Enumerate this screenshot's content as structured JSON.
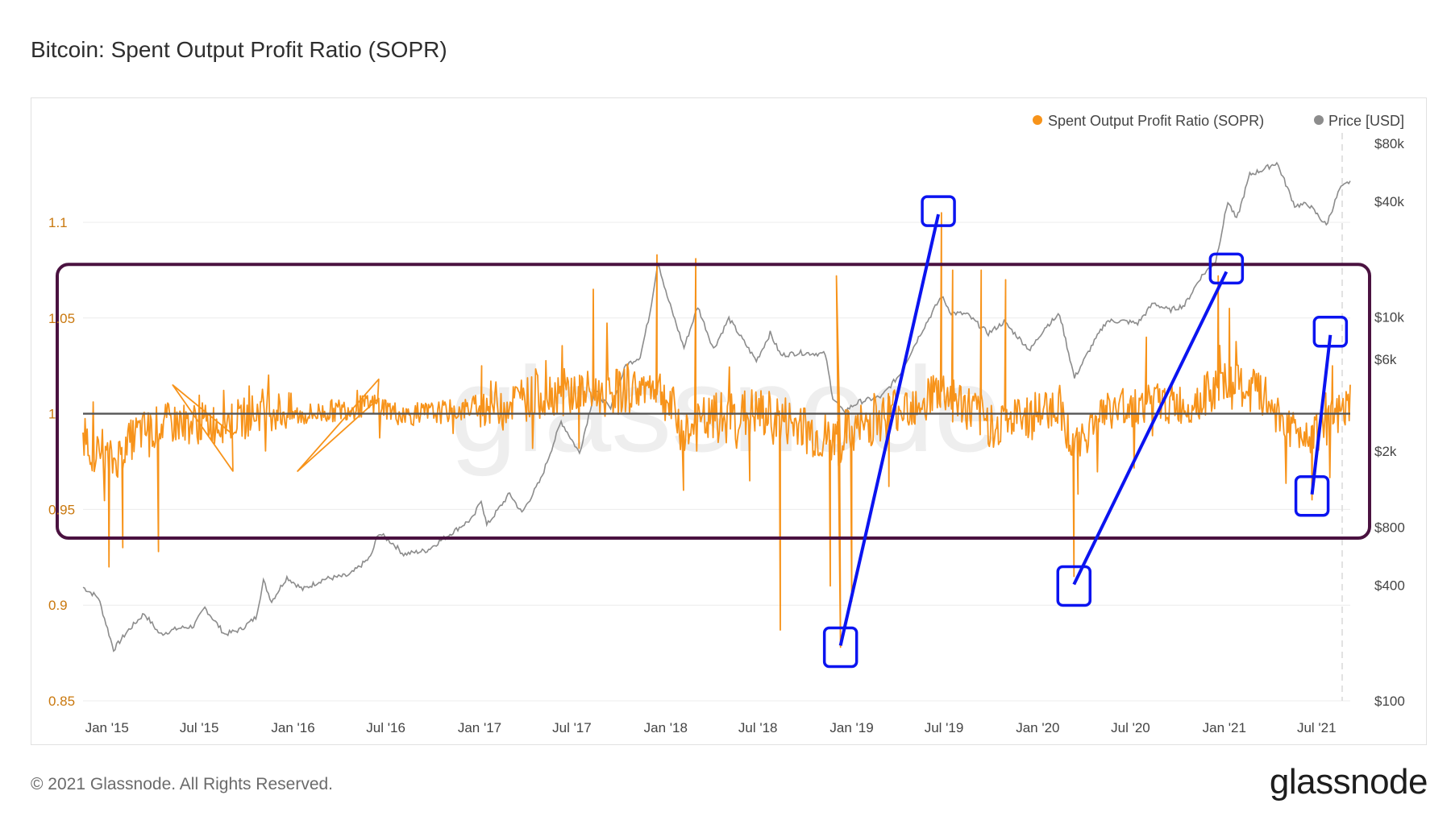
{
  "title": "Bitcoin: Spent Output Profit Ratio (SOPR)",
  "footer": {
    "copyright": "© 2021 Glassnode. All Rights Reserved.",
    "brand": "glassnode"
  },
  "watermark": "glassnode",
  "colors": {
    "sopr": "#f7931a",
    "price": "#8c8c8c",
    "baseline": "#555555",
    "annotation_box": "#4a1240",
    "annotation_blue": "#0b14f0",
    "left_axis_text": "#c9780e"
  },
  "chart_data": {
    "type": "line",
    "legend": [
      "Spent Output Profit Ratio (SOPR)",
      "Price [USD]"
    ],
    "legend_position": "top-right",
    "x_ticks": [
      "Jan '15",
      "Jul '15",
      "Jan '16",
      "Jul '16",
      "Jan '17",
      "Jul '17",
      "Jan '18",
      "Jul '18",
      "Jan '19",
      "Jul '19",
      "Jan '20",
      "Jul '20",
      "Jan '21",
      "Jul '21"
    ],
    "x_range": [
      "2014-11-15",
      "2021-09-05"
    ],
    "y_left": {
      "label": "",
      "ticks": [
        "0.85",
        "0.9",
        "0.95",
        "1",
        "1.05",
        "1.1"
      ],
      "range": [
        0.85,
        1.1
      ]
    },
    "y_right": {
      "label": "",
      "scale": "log",
      "ticks": [
        "$100",
        "$400",
        "$800",
        "$2k",
        "$6k",
        "$10k",
        "$40k",
        "$80k"
      ],
      "range": [
        100,
        80000
      ]
    },
    "grid": "horizontal",
    "series": [
      {
        "name": "Price [USD]",
        "axis": "right",
        "points": [
          [
            "2014-11-15",
            390
          ],
          [
            "2014-12-15",
            345
          ],
          [
            "2015-01-14",
            185
          ],
          [
            "2015-02-10",
            230
          ],
          [
            "2015-03-15",
            285
          ],
          [
            "2015-04-15",
            222
          ],
          [
            "2015-05-20",
            238
          ],
          [
            "2015-06-20",
            245
          ],
          [
            "2015-07-12",
            305
          ],
          [
            "2015-08-20",
            222
          ],
          [
            "2015-09-20",
            235
          ],
          [
            "2015-10-20",
            272
          ],
          [
            "2015-11-04",
            420
          ],
          [
            "2015-11-20",
            330
          ],
          [
            "2015-12-20",
            440
          ],
          [
            "2016-01-20",
            380
          ],
          [
            "2016-03-01",
            430
          ],
          [
            "2016-04-20",
            450
          ],
          [
            "2016-06-01",
            560
          ],
          [
            "2016-06-17",
            750
          ],
          [
            "2016-07-15",
            660
          ],
          [
            "2016-08-05",
            580
          ],
          [
            "2016-09-20",
            608
          ],
          [
            "2016-11-01",
            730
          ],
          [
            "2016-12-20",
            900
          ],
          [
            "2017-01-04",
            1120
          ],
          [
            "2017-01-15",
            820
          ],
          [
            "2017-03-01",
            1200
          ],
          [
            "2017-03-25",
            950
          ],
          [
            "2017-05-01",
            1420
          ],
          [
            "2017-06-10",
            2850
          ],
          [
            "2017-07-16",
            1950
          ],
          [
            "2017-08-15",
            4150
          ],
          [
            "2017-09-15",
            3300
          ],
          [
            "2017-10-15",
            5600
          ],
          [
            "2017-11-12",
            6200
          ],
          [
            "2017-12-01",
            10500
          ],
          [
            "2017-12-17",
            19500
          ],
          [
            "2018-01-01",
            13500
          ],
          [
            "2018-02-06",
            6900
          ],
          [
            "2018-03-05",
            11300
          ],
          [
            "2018-04-05",
            6800
          ],
          [
            "2018-05-05",
            9800
          ],
          [
            "2018-06-28",
            5900
          ],
          [
            "2018-07-25",
            8200
          ],
          [
            "2018-08-15",
            6300
          ],
          [
            "2018-09-20",
            6500
          ],
          [
            "2018-11-10",
            6400
          ],
          [
            "2018-11-25",
            3800
          ],
          [
            "2018-12-15",
            3200
          ],
          [
            "2019-01-15",
            3600
          ],
          [
            "2019-03-01",
            3850
          ],
          [
            "2019-04-05",
            5000
          ],
          [
            "2019-05-15",
            8100
          ],
          [
            "2019-06-26",
            12800
          ],
          [
            "2019-07-15",
            10500
          ],
          [
            "2019-08-15",
            10300
          ],
          [
            "2019-09-26",
            8200
          ],
          [
            "2019-10-27",
            9400
          ],
          [
            "2019-12-17",
            6700
          ],
          [
            "2020-01-15",
            8800
          ],
          [
            "2020-02-13",
            10300
          ],
          [
            "2020-03-13",
            4800
          ],
          [
            "2020-04-15",
            7000
          ],
          [
            "2020-05-15",
            9500
          ],
          [
            "2020-06-15",
            9500
          ],
          [
            "2020-07-15",
            9250
          ],
          [
            "2020-08-15",
            11800
          ],
          [
            "2020-09-15",
            10800
          ],
          [
            "2020-10-15",
            11500
          ],
          [
            "2020-11-15",
            16000
          ],
          [
            "2020-12-15",
            19500
          ],
          [
            "2021-01-08",
            40000
          ],
          [
            "2021-01-25",
            32000
          ],
          [
            "2021-02-20",
            55000
          ],
          [
            "2021-03-15",
            58000
          ],
          [
            "2021-04-14",
            63500
          ],
          [
            "2021-05-19",
            38000
          ],
          [
            "2021-06-15",
            38500
          ],
          [
            "2021-07-20",
            30000
          ],
          [
            "2021-08-15",
            46000
          ],
          [
            "2021-09-05",
            51000
          ]
        ]
      },
      {
        "name": "Spent Output Profit Ratio (SOPR)",
        "axis": "left",
        "baseline": 1,
        "anchors": [
          [
            "2014-11-15",
            0.99
          ],
          [
            "2014-12-05",
            0.98
          ],
          [
            "2015-01-14",
            0.975
          ],
          [
            "2015-03-01",
            0.99
          ],
          [
            "2015-05-01",
            0.995
          ],
          [
            "2015-08-01",
            0.995
          ],
          [
            "2015-10-01",
            0.998
          ],
          [
            "2015-11-04",
            1.003
          ],
          [
            "2016-01-15",
            0.999
          ],
          [
            "2016-06-15",
            1.005
          ],
          [
            "2016-08-01",
            0.999
          ],
          [
            "2016-12-01",
            1.002
          ],
          [
            "2017-01-04",
            1.005
          ],
          [
            "2017-03-01",
            1.006
          ],
          [
            "2017-06-10",
            1.012
          ],
          [
            "2017-09-01",
            1.01
          ],
          [
            "2017-12-17",
            1.015
          ],
          [
            "2018-02-06",
            0.99
          ],
          [
            "2018-04-01",
            0.997
          ],
          [
            "2018-07-01",
            1.0
          ],
          [
            "2018-09-01",
            0.995
          ],
          [
            "2018-11-25",
            0.985
          ],
          [
            "2019-01-01",
            0.99
          ],
          [
            "2019-04-01",
            1.003
          ],
          [
            "2019-06-26",
            1.012
          ],
          [
            "2019-09-26",
            0.995
          ],
          [
            "2019-12-01",
            0.997
          ],
          [
            "2020-02-13",
            1.005
          ],
          [
            "2020-03-13",
            0.98
          ],
          [
            "2020-05-01",
            1.0
          ],
          [
            "2020-08-15",
            1.006
          ],
          [
            "2020-10-15",
            1.004
          ],
          [
            "2021-01-08",
            1.015
          ],
          [
            "2021-03-15",
            1.01
          ],
          [
            "2021-05-19",
            0.99
          ],
          [
            "2021-07-20",
            0.993
          ],
          [
            "2021-09-05",
            1.003
          ]
        ],
        "spikes": [
          [
            "2015-01-05",
            0.92
          ],
          [
            "2015-02-01",
            0.93
          ],
          [
            "2015-04-12",
            0.928
          ],
          [
            "2015-09-05",
            0.97
          ],
          [
            "2015-05-10",
            1.015
          ],
          [
            "2016-06-17",
            1.018
          ],
          [
            "2016-01-10",
            0.97
          ],
          [
            "2017-01-05",
            1.025
          ],
          [
            "2017-07-15",
            0.982
          ],
          [
            "2017-08-12",
            1.065
          ],
          [
            "2017-12-15",
            1.083
          ],
          [
            "2018-02-05",
            0.96
          ],
          [
            "2018-03-01",
            1.081
          ],
          [
            "2018-06-15",
            0.965
          ],
          [
            "2018-08-14",
            0.887
          ],
          [
            "2018-11-20",
            0.91
          ],
          [
            "2018-12-10",
            0.878
          ],
          [
            "2018-12-02",
            1.072
          ],
          [
            "2019-01-01",
            0.902
          ],
          [
            "2019-03-15",
            0.962
          ],
          [
            "2019-06-26",
            1.105
          ],
          [
            "2019-07-18",
            1.075
          ],
          [
            "2019-09-12",
            1.075
          ],
          [
            "2019-10-30",
            1.07
          ],
          [
            "2020-03-12",
            0.915
          ],
          [
            "2020-03-20",
            0.958
          ],
          [
            "2020-08-01",
            1.04
          ],
          [
            "2020-12-20",
            1.072
          ],
          [
            "2021-01-11",
            1.055
          ],
          [
            "2021-06-22",
            0.955
          ],
          [
            "2021-08-01",
            1.025
          ]
        ]
      }
    ],
    "annotations": {
      "horizontal_box": {
        "from": "2014-11-15",
        "to": "2021-09-05",
        "y_top": 1.078,
        "y_bottom": 0.935
      },
      "links": [
        {
          "low": [
            "2018-12-10",
            0.878
          ],
          "high": [
            "2019-06-20",
            1.105
          ]
        },
        {
          "low": [
            "2020-03-12",
            0.91
          ],
          "high": [
            "2021-01-05",
            1.075
          ]
        },
        {
          "low": [
            "2021-06-22",
            0.957
          ],
          "high": [
            "2021-07-28",
            1.042
          ]
        }
      ]
    }
  }
}
